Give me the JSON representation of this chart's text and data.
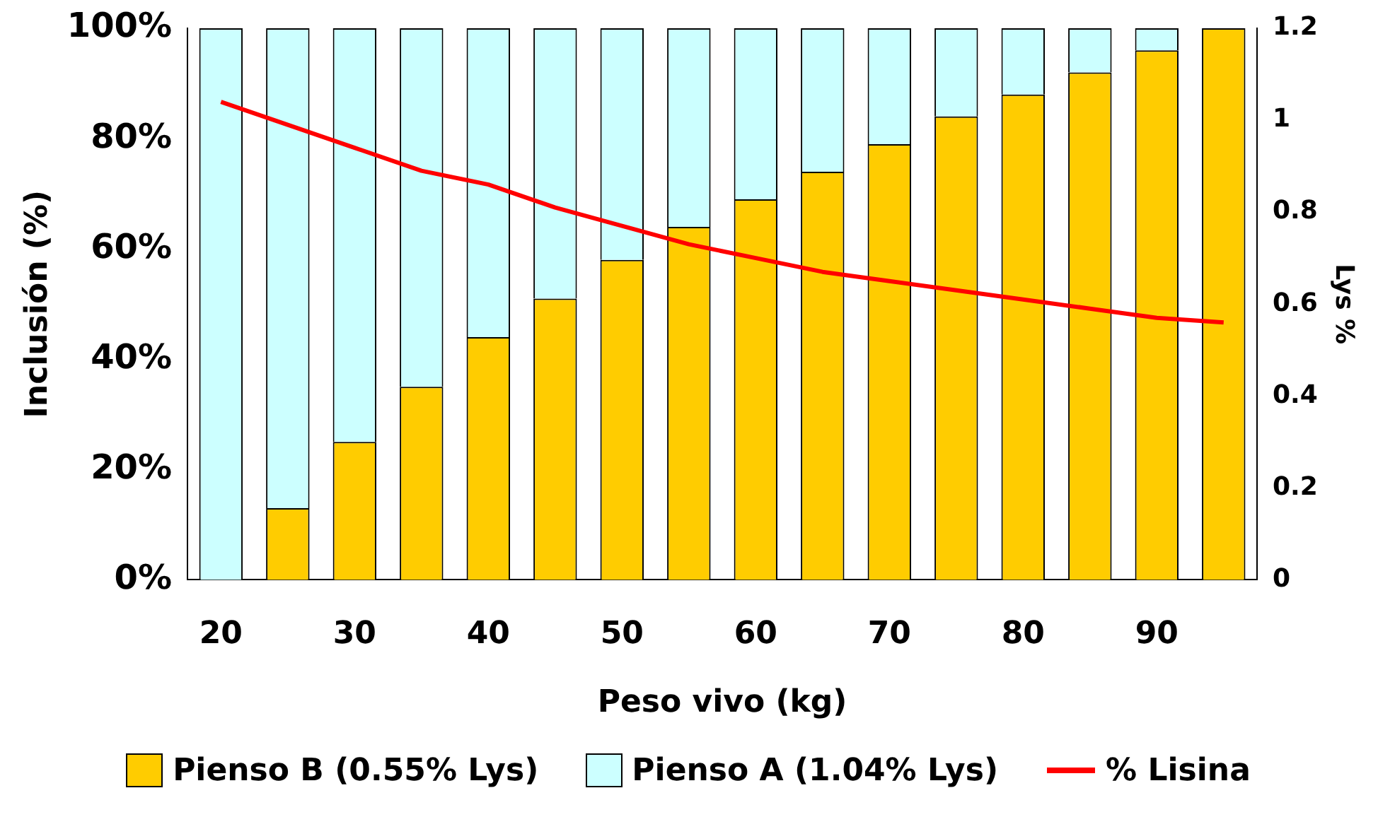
{
  "chart_data": {
    "type": "bar",
    "stacked": true,
    "xlabel": "Peso vivo (kg)",
    "ylabel": "Inclusión (%)",
    "y2label": "Lys %",
    "categories": [
      "20",
      null,
      "30",
      null,
      "40",
      null,
      "50",
      null,
      "60",
      null,
      "70",
      null,
      "80",
      null,
      "90",
      null
    ],
    "series": [
      {
        "name": "Pienso B (0.55% Lys)",
        "color": "#ffcc00",
        "values": [
          0,
          13,
          25,
          35,
          44,
          51,
          58,
          64,
          69,
          74,
          79,
          84,
          88,
          92,
          96,
          100
        ]
      },
      {
        "name": "Pienso A (1.04% Lys)",
        "color": "#ccffff",
        "values": [
          100,
          87,
          75,
          65,
          56,
          49,
          42,
          36,
          31,
          26,
          21,
          16,
          12,
          8,
          4,
          0
        ]
      },
      {
        "name": "% Lisina",
        "type": "line",
        "axis": "y2",
        "color": "#ff0000",
        "values": [
          1.04,
          0.99,
          0.94,
          0.89,
          0.86,
          0.81,
          0.77,
          0.73,
          0.7,
          0.67,
          0.65,
          0.63,
          0.61,
          0.59,
          0.57,
          0.56
        ]
      }
    ],
    "ylim": [
      0,
      100
    ],
    "yticks": [
      {
        "value": 0,
        "label": "0%"
      },
      {
        "value": 20,
        "label": "20%"
      },
      {
        "value": 40,
        "label": "40%"
      },
      {
        "value": 60,
        "label": "60%"
      },
      {
        "value": 80,
        "label": "80%"
      },
      {
        "value": 100,
        "label": "100%"
      }
    ],
    "y2lim": [
      0,
      1.2
    ],
    "y2ticks": [
      0,
      0.2,
      0.4,
      0.6,
      0.8,
      1,
      1.2
    ],
    "grid": false,
    "legend": "bottom",
    "marker": "none",
    "line_style": "solid"
  }
}
